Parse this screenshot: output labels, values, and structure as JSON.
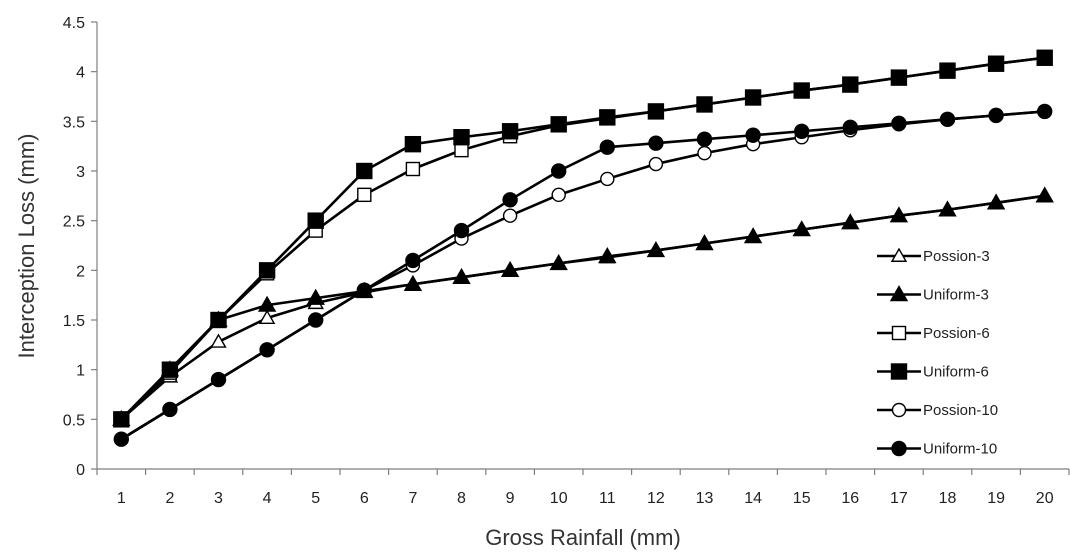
{
  "chart_data": {
    "type": "line",
    "title": "",
    "xlabel": "Gross Rainfall (mm)",
    "ylabel": "Interception Loss (mm)",
    "x": [
      1,
      2,
      3,
      4,
      5,
      6,
      7,
      8,
      9,
      10,
      11,
      12,
      13,
      14,
      15,
      16,
      17,
      18,
      19,
      20
    ],
    "categories": [
      "1",
      "2",
      "3",
      "4",
      "5",
      "6",
      "7",
      "8",
      "9",
      "10",
      "11",
      "12",
      "13",
      "14",
      "15",
      "16",
      "17",
      "18",
      "19",
      "20"
    ],
    "ylim": [
      0,
      4.5
    ],
    "yticks": [
      "0",
      "0.5",
      "1",
      "1.5",
      "2",
      "2.5",
      "3",
      "3.5",
      "4",
      "4.5"
    ],
    "grid": false,
    "legend_position": "right",
    "series": [
      {
        "name": "Possion-3",
        "marker": "triangle-open",
        "color": "#000000",
        "values": [
          0.5,
          0.93,
          1.28,
          1.52,
          1.67,
          1.78,
          1.86,
          1.93,
          2.0,
          2.07,
          2.13,
          2.2,
          2.27,
          2.34,
          2.41,
          2.48,
          2.55,
          2.61,
          2.68,
          2.75
        ]
      },
      {
        "name": "Uniform-3",
        "marker": "triangle-filled",
        "color": "#000000",
        "values": [
          0.5,
          1.0,
          1.5,
          1.65,
          1.72,
          1.79,
          1.86,
          1.93,
          2.0,
          2.07,
          2.14,
          2.2,
          2.27,
          2.34,
          2.41,
          2.48,
          2.55,
          2.61,
          2.68,
          2.75
        ]
      },
      {
        "name": "Possion-6",
        "marker": "square-open",
        "color": "#000000",
        "values": [
          0.5,
          0.97,
          1.5,
          1.97,
          2.4,
          2.76,
          3.02,
          3.21,
          3.35,
          3.46,
          3.53,
          3.6,
          3.67,
          3.74,
          3.81,
          3.87,
          3.94,
          4.01,
          4.08,
          4.14
        ]
      },
      {
        "name": "Uniform-6",
        "marker": "square-filled",
        "color": "#000000",
        "values": [
          0.5,
          1.0,
          1.5,
          2.0,
          2.5,
          3.0,
          3.27,
          3.34,
          3.4,
          3.47,
          3.54,
          3.6,
          3.67,
          3.74,
          3.81,
          3.87,
          3.94,
          4.01,
          4.08,
          4.14
        ]
      },
      {
        "name": "Possion-10",
        "marker": "circle-open",
        "color": "#000000",
        "values": [
          0.3,
          0.6,
          0.9,
          1.2,
          1.5,
          1.8,
          2.05,
          2.32,
          2.55,
          2.76,
          2.92,
          3.07,
          3.18,
          3.27,
          3.34,
          3.41,
          3.47,
          3.52,
          3.56,
          3.6
        ]
      },
      {
        "name": "Uniform-10",
        "marker": "circle-filled",
        "color": "#000000",
        "values": [
          0.3,
          0.6,
          0.9,
          1.2,
          1.5,
          1.8,
          2.1,
          2.4,
          2.71,
          3.0,
          3.24,
          3.28,
          3.32,
          3.36,
          3.4,
          3.44,
          3.48,
          3.52,
          3.56,
          3.6
        ]
      }
    ]
  }
}
